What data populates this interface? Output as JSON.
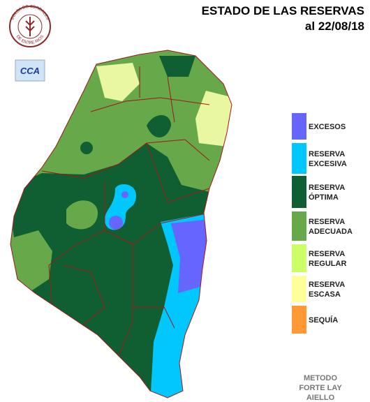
{
  "header": {
    "title": "ESTADO DE LAS RESERVAS",
    "date": "al 22/08/18"
  },
  "logos": {
    "bolsa_top": "BOLSA DE CEREALES",
    "bolsa_bottom": "DE ENTRE RIOS",
    "cca": "CCA"
  },
  "legend": [
    {
      "lines": [
        "EXCESOS"
      ],
      "color": "#6666ff"
    },
    {
      "lines": [
        "RESERVA",
        "EXCESIVA"
      ],
      "color": "#00c8ff"
    },
    {
      "lines": [
        "RESERVA",
        "ÓPTIMA"
      ],
      "color": "#0f5f32"
    },
    {
      "lines": [
        "RESERVA",
        "ADECUADA"
      ],
      "color": "#66a84a"
    },
    {
      "lines": [
        "RESERVA",
        "REGULAR"
      ],
      "color": "#ccff66"
    },
    {
      "lines": [
        "RESERVA",
        "ESCASA"
      ],
      "color": "#ffff99"
    },
    {
      "lines": [
        "SEQUÍA"
      ],
      "color": "#ff9933"
    }
  ],
  "method": [
    "METODO",
    "FORTE LAY",
    "AIELLO"
  ]
}
